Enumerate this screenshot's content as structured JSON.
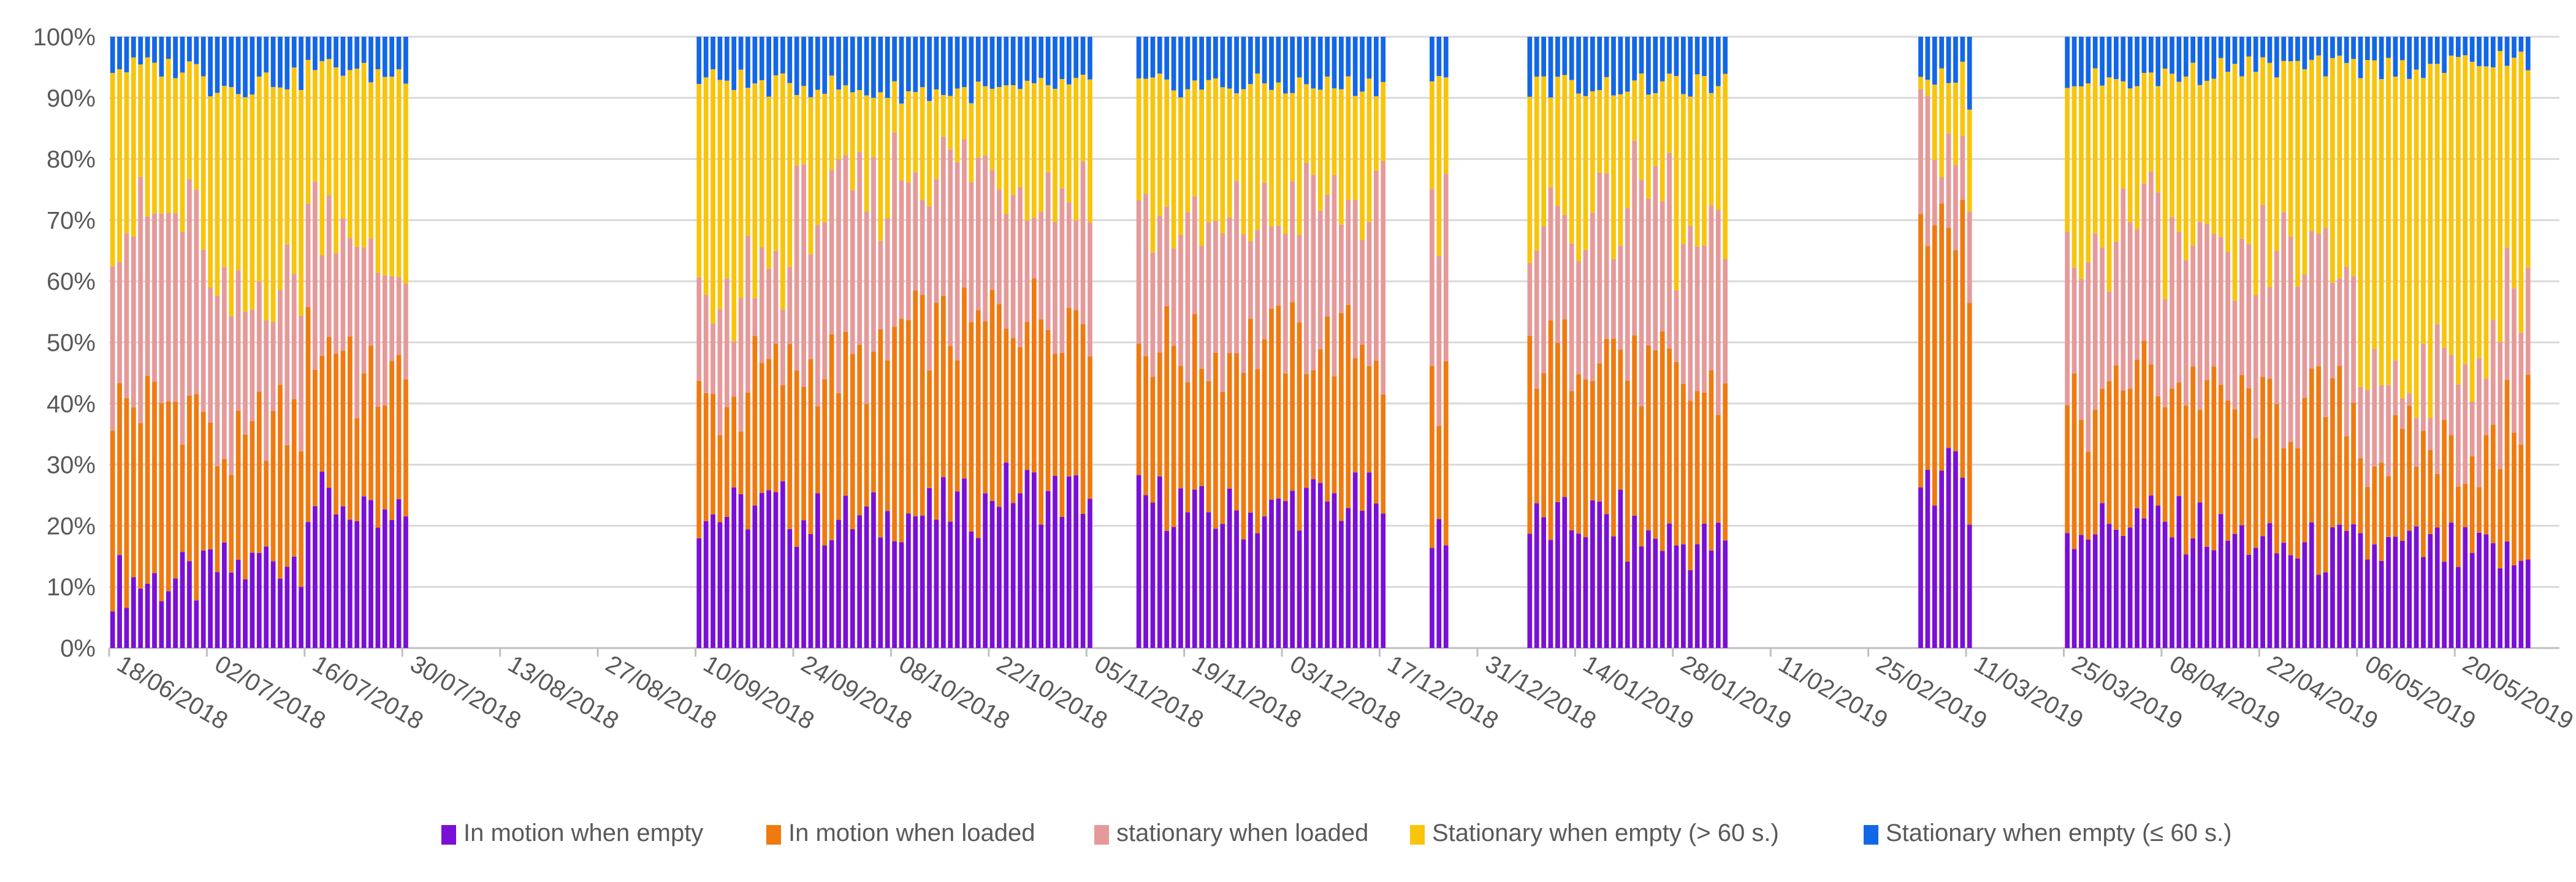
{
  "chart_data": {
    "type": "bar",
    "stacked": true,
    "percent_stacked": true,
    "title": "",
    "xlabel": "",
    "ylabel": "",
    "ylim": [
      0,
      100
    ],
    "grid": true,
    "legend_position": "bottom",
    "y_ticks": [
      "0%",
      "10%",
      "20%",
      "30%",
      "40%",
      "50%",
      "60%",
      "70%",
      "80%",
      "90%",
      "100%"
    ],
    "x_ticks": [
      "18/06/2018",
      "02/07/2018",
      "16/07/2018",
      "30/07/2018",
      "13/08/2018",
      "27/08/2018",
      "10/09/2018",
      "24/09/2018",
      "08/10/2018",
      "22/10/2018",
      "05/11/2018",
      "19/11/2018",
      "03/12/2018",
      "17/12/2018",
      "31/12/2018",
      "14/01/2019",
      "28/01/2019",
      "11/02/2019",
      "25/02/2019",
      "11/03/2019",
      "25/03/2019",
      "08/04/2019",
      "22/04/2019",
      "06/05/2019",
      "20/05/2019"
    ],
    "day_start": "18/06/2018",
    "day_count": 351,
    "series": [
      {
        "name": "In motion when empty",
        "color": "#7a0fd6"
      },
      {
        "name": "In motion when loaded",
        "color": "#f07a10"
      },
      {
        "name": "stationary when loaded",
        "color": "#e59a99"
      },
      {
        "name": "Stationary when empty (> 60 s.)",
        "color": "#f8c40c"
      },
      {
        "name": "Stationary when empty (≤ 60 s.)",
        "color": "#1367e6"
      }
    ],
    "segments": [
      {
        "start": 0,
        "end": 13,
        "boundaries": [
          11,
          40,
          70,
          95
        ]
      },
      {
        "start": 14,
        "end": 20,
        "boundaries": [
          13,
          32,
          55,
          92
        ]
      },
      {
        "start": 21,
        "end": 27,
        "boundaries": [
          15,
          37,
          60,
          93
        ]
      },
      {
        "start": 28,
        "end": 34,
        "boundaries": [
          24,
          50,
          72,
          95
        ]
      },
      {
        "start": 35,
        "end": 41,
        "boundaries": [
          20,
          43,
          62,
          94
        ]
      },
      {
        "start": 42,
        "end": 42,
        "boundaries": [
          22,
          42,
          66,
          94
        ]
      },
      {
        "start": 84,
        "end": 90,
        "boundaries": [
          22,
          40,
          53,
          93
        ]
      },
      {
        "start": 91,
        "end": 97,
        "boundaries": [
          23,
          45,
          63,
          92
        ]
      },
      {
        "start": 98,
        "end": 104,
        "boundaries": [
          21,
          46,
          72,
          92
        ]
      },
      {
        "start": 105,
        "end": 111,
        "boundaries": [
          21,
          46,
          74,
          91
        ]
      },
      {
        "start": 112,
        "end": 118,
        "boundaries": [
          22,
          52,
          79,
          91
        ]
      },
      {
        "start": 119,
        "end": 125,
        "boundaries": [
          23,
          52,
          79,
          91
        ]
      },
      {
        "start": 126,
        "end": 132,
        "boundaries": [
          26,
          55,
          77,
          91
        ]
      },
      {
        "start": 133,
        "end": 139,
        "boundaries": [
          25,
          55,
          75,
          92
        ]
      },
      {
        "start": 140,
        "end": 140,
        "boundaries": [
          25,
          50,
          73,
          92
        ]
      },
      {
        "start": 147,
        "end": 153,
        "boundaries": [
          24,
          50,
          70,
          92
        ]
      },
      {
        "start": 154,
        "end": 160,
        "boundaries": [
          22,
          48,
          67,
          92
        ]
      },
      {
        "start": 161,
        "end": 167,
        "boundaries": [
          22,
          50,
          70,
          92
        ]
      },
      {
        "start": 168,
        "end": 174,
        "boundaries": [
          24,
          50,
          73,
          92
        ]
      },
      {
        "start": 175,
        "end": 181,
        "boundaries": [
          24,
          50,
          72,
          92
        ]
      },
      {
        "start": 182,
        "end": 182,
        "boundaries": [
          20,
          45,
          72,
          92
        ]
      },
      {
        "start": 189,
        "end": 191,
        "boundaries": [
          20,
          43,
          72,
          92
        ]
      },
      {
        "start": 203,
        "end": 209,
        "boundaries": [
          20,
          48,
          70,
          92
        ]
      },
      {
        "start": 210,
        "end": 216,
        "boundaries": [
          21,
          50,
          70,
          92
        ]
      },
      {
        "start": 217,
        "end": 223,
        "boundaries": [
          18,
          45,
          75,
          92
        ]
      },
      {
        "start": 224,
        "end": 230,
        "boundaries": [
          17,
          42,
          65,
          92
        ]
      },
      {
        "start": 231,
        "end": 231,
        "boundaries": [
          17,
          42,
          67,
          92
        ]
      },
      {
        "start": 259,
        "end": 265,
        "boundaries": [
          28,
          70,
          85,
          94
        ]
      },
      {
        "start": 266,
        "end": 266,
        "boundaries": [
          25,
          55,
          70,
          90
        ]
      },
      {
        "start": 280,
        "end": 286,
        "boundaries": [
          20,
          38,
          65,
          93
        ]
      },
      {
        "start": 287,
        "end": 293,
        "boundaries": [
          21,
          45,
          70,
          93
        ]
      },
      {
        "start": 294,
        "end": 300,
        "boundaries": [
          20,
          43,
          65,
          94
        ]
      },
      {
        "start": 301,
        "end": 307,
        "boundaries": [
          18,
          40,
          60,
          95
        ]
      },
      {
        "start": 308,
        "end": 314,
        "boundaries": [
          16,
          38,
          65,
          95
        ]
      },
      {
        "start": 315,
        "end": 321,
        "boundaries": [
          16,
          40,
          62,
          95
        ]
      },
      {
        "start": 322,
        "end": 328,
        "boundaries": [
          16,
          32,
          45,
          95
        ]
      },
      {
        "start": 329,
        "end": 335,
        "boundaries": [
          16,
          33,
          45,
          95
        ]
      },
      {
        "start": 336,
        "end": 342,
        "boundaries": [
          15,
          32,
          48,
          96
        ]
      },
      {
        "start": 343,
        "end": 346,
        "boundaries": [
          14,
          38,
          58,
          96
        ]
      }
    ]
  },
  "legend": {
    "items": [
      {
        "label": "In motion when empty",
        "color": "#7a0fd6"
      },
      {
        "label": "In motion when loaded",
        "color": "#f07a10"
      },
      {
        "label": "stationary when loaded",
        "color": "#e59a99"
      },
      {
        "label": "Stationary when empty (> 60 s.)",
        "color": "#f8c40c"
      },
      {
        "label": "Stationary when empty (≤ 60 s.)",
        "color": "#1367e6"
      }
    ]
  }
}
